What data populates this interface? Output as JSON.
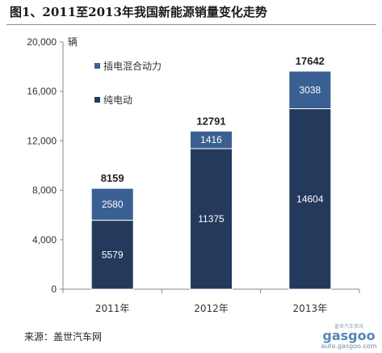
{
  "title": "图1、2011至2013年我国新能源销量变化走势",
  "source": "来源：盖世汽车网",
  "watermark": {
    "brand": "gasgoo",
    "url": "auto.gasgoo.com",
    "tagline": "盖世汽车资讯"
  },
  "chart_data": {
    "type": "bar",
    "stacked": true,
    "categories": [
      "2011年",
      "2012年",
      "2013年"
    ],
    "series": [
      {
        "name": "纯电动",
        "values": [
          5579,
          11375,
          14604
        ],
        "color": "#233a5c"
      },
      {
        "name": "插电混合动力",
        "values": [
          2580,
          1416,
          3038
        ],
        "color": "#3a5f92"
      }
    ],
    "totals": [
      8159,
      12791,
      17642
    ],
    "ylim": [
      0,
      20000
    ],
    "yticks": [
      "0",
      "4,000",
      "8,000",
      "12,000",
      "16,000",
      "20,000"
    ],
    "ytick_values": [
      0,
      4000,
      8000,
      12000,
      16000,
      20000
    ],
    "yunit": "辆",
    "legend_position": "top-left",
    "grid": false
  }
}
